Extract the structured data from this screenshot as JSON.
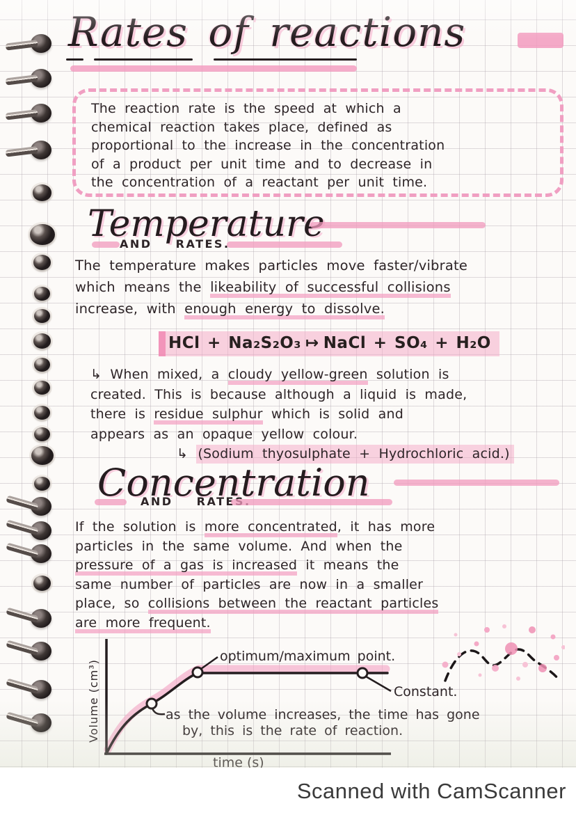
{
  "page": {
    "title": "Rates of reactions",
    "watermark": "Scanned with CamScanner"
  },
  "definition": {
    "lines": [
      "The reaction rate is the speed at which a",
      "chemical reaction takes place, defined as",
      "proportional to the increase in the concentration",
      "of a product per unit time and to decrease in",
      "the concentration of a reactant per unit time."
    ]
  },
  "temperature": {
    "heading": "Temperature",
    "subheading": "AND RATES.",
    "lines": [
      [
        {
          "t": "The temperature makes particles move faster/vibrate"
        }
      ],
      [
        {
          "t": "which means the "
        },
        {
          "t": "likeability of successful collisions",
          "u": true
        }
      ],
      [
        {
          "t": "increase, with "
        },
        {
          "t": "enough energy to dissolve.",
          "u": true
        }
      ]
    ]
  },
  "equation": {
    "left": "HCl + Na₂S₂O₃",
    "arrow": "↦",
    "right": "NaCl + SO₄ + H₂O"
  },
  "mixed_note": {
    "lines": [
      [
        {
          "t": "↳ When mixed, a "
        },
        {
          "t": "cloudy yellow-green",
          "u": true
        },
        {
          "t": " solution is"
        }
      ],
      [
        {
          "t": "created. This is because although a liquid is made,"
        }
      ],
      [
        {
          "t": "there is "
        },
        {
          "t": "residue sulphur",
          "u": true
        },
        {
          "t": " which is solid and"
        }
      ],
      [
        {
          "t": "appears as an opaque yellow colour."
        }
      ],
      [
        {
          "t": "↳ ",
          "i": true
        },
        {
          "t": "(Sodium thyosulphate + Hydrochloric acid.)",
          "hl": true
        }
      ]
    ]
  },
  "concentration": {
    "heading": "Concentration",
    "subheading": "AND RATES.",
    "lines": [
      [
        {
          "t": "If the solution is "
        },
        {
          "t": "more concentrated",
          "u": true
        },
        {
          "t": ", it has more"
        }
      ],
      [
        {
          "t": "particles in the same volume. And when the"
        }
      ],
      [
        {
          "t": "pressure of a gas is increased",
          "u": true
        },
        {
          "t": " it means the"
        }
      ],
      [
        {
          "t": "same number of particles are now in a smaller"
        }
      ],
      [
        {
          "t": "place, so "
        },
        {
          "t": "collisions between the reactant particles",
          "u": true
        }
      ],
      [
        {
          "t": "are more frequent.",
          "u": true
        }
      ]
    ]
  },
  "graph": {
    "ylabel": "Volume (cm³)",
    "xlabel": "time (s)",
    "annotations": {
      "optimum": "optimum/maximum point.",
      "constant": "Constant.",
      "rate_line1": "as the volume increases, the time has gone",
      "rate_line2": "by, this is the rate of reaction."
    }
  },
  "chart_data": {
    "type": "line",
    "title": "",
    "xlabel": "time (s)",
    "ylabel": "Volume (cm³)",
    "x": [
      0,
      1,
      2,
      3,
      4,
      5,
      6,
      7,
      8,
      9,
      10
    ],
    "y": [
      0,
      22,
      40,
      54,
      64,
      70,
      70,
      70,
      70,
      70,
      70
    ],
    "axis_ticks": "none",
    "grid": true,
    "annotations": [
      {
        "label": "as the volume increases, the time has gone by, this is the rate of reaction.",
        "x": 2
      },
      {
        "label": "optimum/maximum point.",
        "x": 4
      },
      {
        "label": "Constant.",
        "x": 9
      }
    ],
    "description": "Hand-drawn curve: volume of gas rises steeply with time, then levels off at an optimum/maximum point and stays constant."
  },
  "colors": {
    "highlight_pink": "#f4a6c2",
    "ink": "#2d2427",
    "paper": "#fcfaf8",
    "grid_line": "#aca2aa",
    "watermark_text": "#3a3a3a"
  }
}
